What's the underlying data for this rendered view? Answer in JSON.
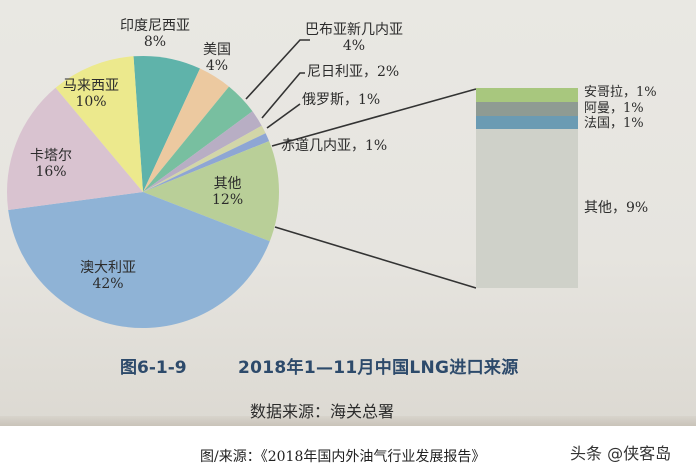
{
  "chart_data": {
    "type": "pie",
    "title": "图6-1-9  2018年1—11月中国LNG进口来源",
    "figure_number": "图6-1-9",
    "title_text": "2018年1—11月中国LNG进口来源",
    "source_note": "数据来源：海关总署",
    "slices": [
      {
        "label": "澳大利亚",
        "value": 42,
        "display": "42%",
        "color": "#8fb3d6"
      },
      {
        "label": "卡塔尔",
        "value": 16,
        "display": "16%",
        "color": "#d9c3d0"
      },
      {
        "label": "马来西亚",
        "value": 10,
        "display": "10%",
        "color": "#ece98d"
      },
      {
        "label": "印度尼西亚",
        "value": 8,
        "display": "8%",
        "color": "#5fb3aa"
      },
      {
        "label": "美国",
        "value": 4,
        "display": "4%",
        "color": "#ecc9a0"
      },
      {
        "label": "巴布亚新几内亚",
        "value": 4,
        "display": "4%",
        "color": "#78bfa0"
      },
      {
        "label": "尼日利亚",
        "value": 2,
        "display": "2%",
        "color": "#b8aec4"
      },
      {
        "label": "俄罗斯",
        "value": 1,
        "display": "1%",
        "color": "#d2d6a8"
      },
      {
        "label": "赤道几内亚",
        "value": 1,
        "display": "1%",
        "color": "#8ea6d4"
      },
      {
        "label": "其他",
        "value": 12,
        "display": "12%",
        "color": "#b9cf98"
      }
    ],
    "breakout": {
      "of": "其他",
      "items": [
        {
          "label": "安哥拉",
          "value": 1,
          "display": "安哥拉，1%",
          "color": "#a8c77e"
        },
        {
          "label": "阿曼",
          "value": 1,
          "display": "阿曼，1%",
          "color": "#8f9b93"
        },
        {
          "label": "法国",
          "value": 1,
          "display": "法国，1%",
          "color": "#6b9bb3"
        },
        {
          "label": "其他",
          "value": 9,
          "display": "其他，9%",
          "color": "#cfd1c9"
        }
      ]
    }
  },
  "labels": {
    "australia": {
      "name": "澳大利亚",
      "pct": "42%"
    },
    "qatar": {
      "name": "卡塔尔",
      "pct": "16%"
    },
    "malaysia": {
      "name": "马来西亚",
      "pct": "10%"
    },
    "indonesia": {
      "name": "印度尼西亚",
      "pct": "8%"
    },
    "usa": {
      "name": "美国",
      "pct": "4%"
    },
    "png": {
      "name": "巴布亚新几内亚",
      "pct": "4%"
    },
    "nigeria": "尼日利亚，2%",
    "russia": "俄罗斯，1%",
    "eq_guinea": "赤道几内亚，1%",
    "others": {
      "name": "其他",
      "pct": "12%"
    },
    "angola": "安哥拉，1%",
    "oman": "阿曼，1%",
    "france": "法国，1%",
    "others_sub": "其他，9%"
  },
  "figure": {
    "number": "图6-1-9",
    "title": "2018年1—11月中国LNG进口来源",
    "source": "数据来源：海关总署"
  },
  "caption": "图/来源：《2018年国内外油气行业发展报告》",
  "watermark": "头条 @侠客岛"
}
